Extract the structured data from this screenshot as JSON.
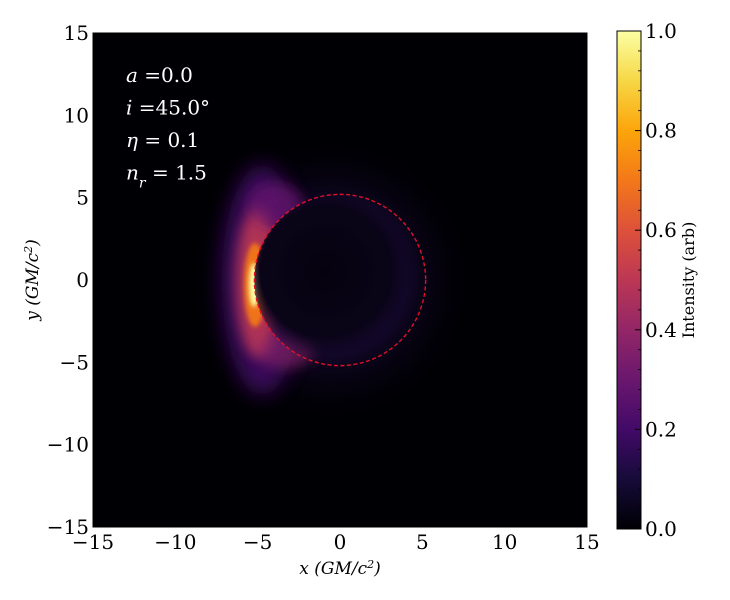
{
  "chart_data": {
    "type": "heatmap",
    "title": "",
    "xlabel": "x (GM/c²)",
    "ylabel": "y (GM/c²)",
    "xlim": [
      -15,
      15
    ],
    "ylim": [
      -15,
      15
    ],
    "xticks": [
      "−15",
      "−10",
      "−5",
      "0",
      "5",
      "10",
      "15"
    ],
    "xtick_values": [
      -15,
      -10,
      -5,
      0,
      5,
      10,
      15
    ],
    "yticks": [
      "−15",
      "−10",
      "−5",
      "0",
      "5",
      "10",
      "15"
    ],
    "ytick_values": [
      -15,
      -10,
      -5,
      0,
      5,
      10,
      15
    ],
    "grid": false,
    "colormap": "inferno",
    "colorbar": {
      "label": "Intensity (arb)",
      "range": [
        0,
        1
      ],
      "ticks": [
        "0.0",
        "0.2",
        "0.4",
        "0.6",
        "0.8",
        "1.0"
      ],
      "tick_values": [
        0,
        0.2,
        0.4,
        0.6,
        0.8,
        1.0
      ]
    },
    "shadow_circle": {
      "center": [
        0.0,
        0.0
      ],
      "radius": 5.2,
      "color": "#e0102a",
      "style": "dashed"
    },
    "brightness_peak": {
      "x": -5.2,
      "y": 0.0
    },
    "annotations": [
      {
        "label": "a",
        "value": "=0.0"
      },
      {
        "label": "i",
        "value": "=45.0°"
      },
      {
        "label": "η",
        "value": "= 0.1"
      },
      {
        "label": "n",
        "sub": "r",
        "value": "= 1.5"
      }
    ]
  }
}
